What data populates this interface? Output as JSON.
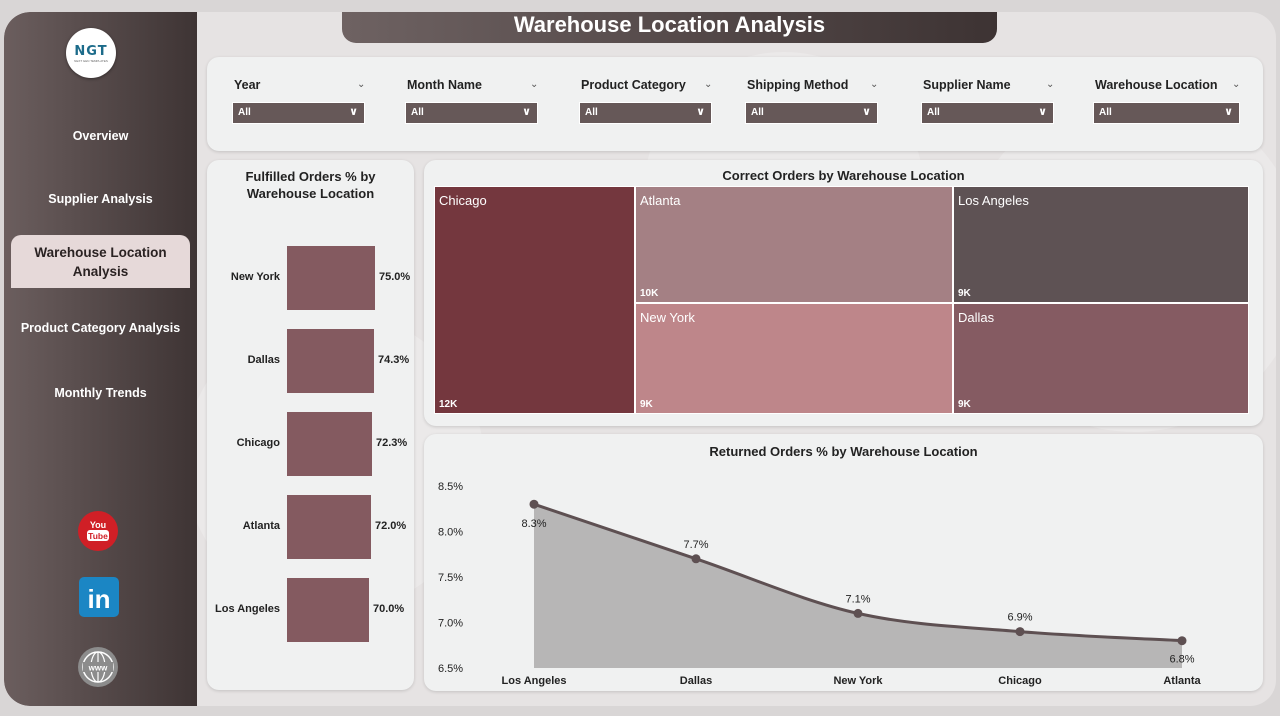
{
  "title": "Warehouse Location Analysis",
  "logo": {
    "text": "NGT",
    "subtext": "NEXT GEN TEMPLATES"
  },
  "nav": {
    "overview": "Overview",
    "supplier": "Supplier Analysis",
    "warehouse": "Warehouse Location Analysis",
    "product": "Product Category Analysis",
    "monthly": "Monthly Trends"
  },
  "filters": [
    {
      "label": "Year",
      "value": "All"
    },
    {
      "label": "Month Name",
      "value": "All"
    },
    {
      "label": "Product Category",
      "value": "All"
    },
    {
      "label": "Shipping Method",
      "value": "All"
    },
    {
      "label": "Supplier Name",
      "value": "All"
    },
    {
      "label": "Warehouse Location",
      "value": "All"
    }
  ],
  "social": {
    "youtube": "You Tube",
    "linkedin": "in",
    "web": "www"
  },
  "fulfilled": {
    "title": "Fulfilled Orders % by Warehouse Location",
    "bars": [
      {
        "label": "New York",
        "value": 75.0,
        "text": "75.0%"
      },
      {
        "label": "Dallas",
        "value": 74.3,
        "text": "74.3%"
      },
      {
        "label": "Chicago",
        "value": 72.3,
        "text": "72.3%"
      },
      {
        "label": "Atlanta",
        "value": 72.0,
        "text": "72.0%"
      },
      {
        "label": "Los Angeles",
        "value": 70.0,
        "text": "70.0%"
      }
    ]
  },
  "treemap": {
    "title": "Correct Orders by Warehouse Location",
    "cells": [
      {
        "name": "Chicago",
        "value": "12K",
        "color": "#74373e"
      },
      {
        "name": "Atlanta",
        "value": "10K",
        "color": "#a48084"
      },
      {
        "name": "Los Angeles",
        "value": "9K",
        "color": "#5e5254"
      },
      {
        "name": "New York",
        "value": "9K",
        "color": "#be868a"
      },
      {
        "name": "Dallas",
        "value": "9K",
        "color": "#855b62"
      }
    ]
  },
  "chart_data": {
    "type": "area",
    "title": "Returned Orders % by Warehouse Location",
    "categories": [
      "Los Angeles",
      "Dallas",
      "New York",
      "Chicago",
      "Atlanta"
    ],
    "values": [
      8.3,
      7.7,
      7.1,
      6.9,
      6.8
    ],
    "labels": [
      "8.3%",
      "7.7%",
      "7.1%",
      "6.9%",
      "6.8%"
    ],
    "yticks": [
      "8.5%",
      "8.0%",
      "7.5%",
      "7.0%",
      "6.5%"
    ],
    "ylim": [
      6.5,
      8.5
    ],
    "line_color": "#5e5052",
    "fill_color": "#b7b6b6"
  }
}
